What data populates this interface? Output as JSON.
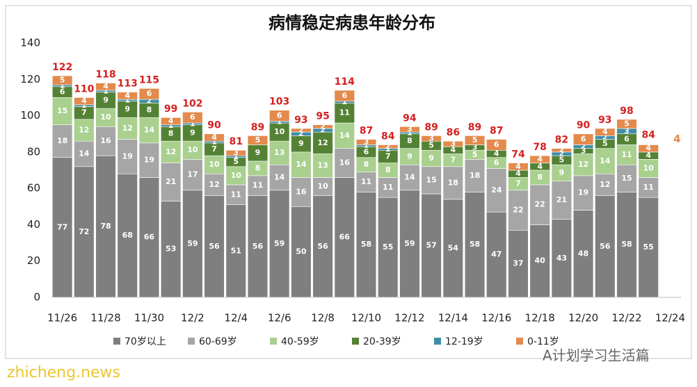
{
  "chart_data": {
    "type": "stacked_bar",
    "title": "病情稳定病患年龄分布",
    "categories": [
      "11/26",
      null,
      "11/28",
      null,
      "11/30",
      null,
      "12/2",
      null,
      "12/4",
      null,
      "12/6",
      null,
      "12/8",
      null,
      "12/10",
      null,
      "12/12",
      null,
      "12/14",
      null,
      "12/16",
      null,
      "12/18",
      null,
      "12/20",
      null,
      "12/22",
      null,
      "12/24"
    ],
    "series": [
      {
        "name": "70岁以上",
        "color": "#7f7f7f",
        "values": [
          77,
          72,
          78,
          68,
          66,
          53,
          59,
          56,
          51,
          56,
          59,
          50,
          56,
          66,
          58,
          55,
          59,
          57,
          54,
          58,
          47,
          37,
          40,
          43,
          48,
          56,
          58,
          55,
          null
        ]
      },
      {
        "name": "60-69岁",
        "color": "#a6a6a6",
        "values": [
          18,
          14,
          16,
          19,
          19,
          21,
          17,
          12,
          11,
          11,
          14,
          16,
          10,
          16,
          11,
          11,
          14,
          15,
          18,
          18,
          24,
          22,
          22,
          21,
          19,
          12,
          15,
          11,
          null
        ]
      },
      {
        "name": "40-59岁",
        "color": "#a9d08e",
        "values": [
          15,
          12,
          10,
          12,
          14,
          12,
          10,
          10,
          10,
          8,
          13,
          14,
          13,
          14,
          8,
          8,
          9,
          9,
          7,
          5,
          6,
          7,
          8,
          9,
          12,
          14,
          11,
          10,
          null
        ]
      },
      {
        "name": "20-39岁",
        "color": "#548235",
        "values": [
          6,
          7,
          9,
          9,
          8,
          8,
          9,
          7,
          5,
          9,
          10,
          9,
          12,
          11,
          6,
          7,
          8,
          5,
          4,
          3,
          4,
          4,
          4,
          5,
          3,
          5,
          6,
          4,
          null
        ]
      },
      {
        "name": "12-19岁",
        "color": "#3f8ea6",
        "values": [
          1,
          1,
          1,
          1,
          2,
          1,
          1,
          1,
          1,
          0,
          1,
          2,
          2,
          1,
          1,
          1,
          1,
          0,
          0,
          0,
          0,
          0,
          0,
          2,
          2,
          2,
          3,
          0,
          null
        ]
      },
      {
        "name": "0-11岁",
        "color": "#e38a4c",
        "values": [
          5,
          4,
          4,
          4,
          6,
          4,
          6,
          4,
          3,
          5,
          6,
          2,
          2,
          6,
          3,
          2,
          3,
          3,
          3,
          5,
          6,
          4,
          4,
          2,
          6,
          4,
          5,
          4,
          null
        ]
      }
    ],
    "totals": [
      122,
      110,
      118,
      113,
      115,
      99,
      102,
      90,
      81,
      89,
      103,
      93,
      95,
      114,
      87,
      84,
      94,
      89,
      86,
      89,
      87,
      74,
      78,
      82,
      90,
      93,
      98,
      84,
      null
    ],
    "annotation": "4",
    "watermarks": [
      "zhicheng.news",
      "A计划学习生活篇"
    ],
    "ylim": [
      0,
      140
    ],
    "yticks": [
      0,
      20,
      40,
      60,
      80,
      100,
      120,
      140
    ],
    "grid": false,
    "legend": "bottom"
  }
}
